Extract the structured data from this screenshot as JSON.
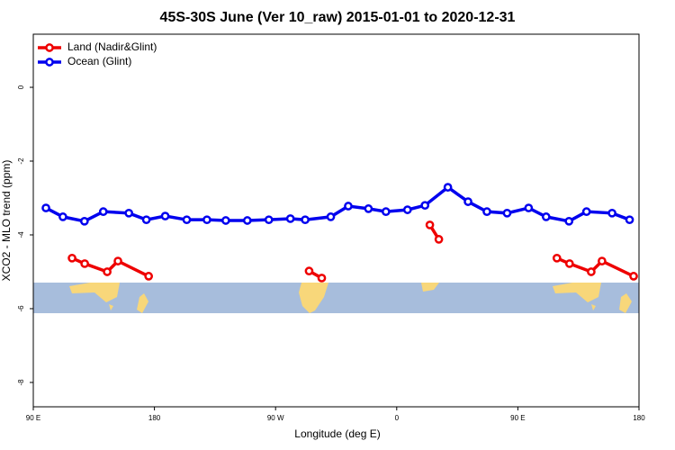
{
  "chart_data": {
    "type": "line",
    "title": "45S-30S June (Ver 10_raw)   2015-01-01 to 2020-12-31",
    "x_label": "Longitude (deg E)",
    "y_label": "XCO2 - MLO trend (ppm)",
    "xlim": [
      90,
      540
    ],
    "ylim": [
      -8.66,
      1.44
    ],
    "xticks": [
      {
        "value": 90,
        "label": "90 E"
      },
      180,
      {
        "value": 270,
        "label": "90 W"
      },
      {
        "value": 360,
        "label": "0"
      },
      {
        "value": 450,
        "label": "90 E"
      },
      {
        "value": 540,
        "label": "180"
      }
    ],
    "yticks": [
      0,
      -2,
      -4,
      -6,
      -8
    ],
    "legend": "top-left",
    "series": [
      {
        "name": "Land (Nadir&Glint)",
        "color": "#ee0000",
        "x": [
          118.8,
          128.2,
          144.9,
          152.9,
          175.7,
          240,
          294.9,
          304.3,
          340,
          384.6,
          391.3,
          440,
          479,
          488.4,
          504.5,
          512.5,
          536
        ],
        "values": [
          -4.63,
          -4.78,
          -5.0,
          -4.71,
          -5.12,
          null,
          -4.98,
          -5.17,
          null,
          -3.73,
          -4.12,
          null,
          -4.63,
          -4.78,
          -5.0,
          -4.71,
          -5.12
        ]
      },
      {
        "name": "Ocean (Glint)",
        "color": "#0000ee",
        "x": [
          99.4,
          112,
          128,
          142,
          161,
          174,
          188,
          204,
          219,
          233,
          249,
          265,
          281,
          292,
          311,
          324,
          339,
          352,
          368,
          381,
          398,
          413,
          427,
          442,
          458,
          471,
          488,
          501,
          520,
          533
        ],
        "values": [
          -3.27,
          -3.51,
          -3.63,
          -3.37,
          -3.41,
          -3.59,
          -3.49,
          -3.59,
          -3.59,
          -3.61,
          -3.61,
          -3.59,
          -3.56,
          -3.59,
          -3.51,
          -3.22,
          -3.29,
          -3.37,
          -3.32,
          -3.2,
          -2.71,
          -3.1,
          -3.37,
          -3.41,
          -3.27,
          -3.51,
          -3.63,
          -3.37,
          -3.41,
          -3.59
        ]
      }
    ]
  }
}
